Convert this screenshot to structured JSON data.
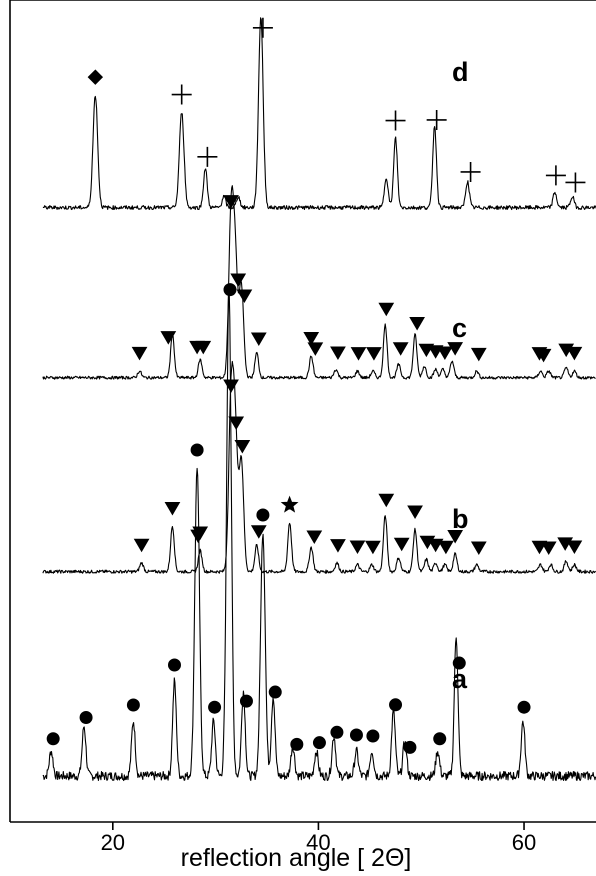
{
  "chart_data": {
    "type": "line",
    "title": "",
    "xlabel": "reflection angle [ 2Θ]",
    "ylabel": "",
    "xlim": [
      10,
      67
    ],
    "x_ticks": [
      20,
      40,
      60
    ],
    "y_ticks": false,
    "grid": false,
    "marker_legend": {
      "diamond": "reflection marker (pattern d)",
      "plus": "reflection marker (pattern d)",
      "triangle": "reflection marker (patterns b, c)",
      "star": "reflection marker (pattern b)",
      "circle": "reflection marker (pattern a)"
    },
    "series": [
      {
        "name": "a",
        "label": "a",
        "offset": 0.0,
        "peaks": [
          [
            14.0,
            0.05
          ],
          [
            17.2,
            0.1
          ],
          [
            22.0,
            0.11
          ],
          [
            26.0,
            0.19
          ],
          [
            28.2,
            0.62
          ],
          [
            29.8,
            0.11
          ],
          [
            31.3,
            0.98
          ],
          [
            32.7,
            0.17
          ],
          [
            34.6,
            0.49
          ],
          [
            35.6,
            0.16
          ],
          [
            37.5,
            0.06
          ],
          [
            39.8,
            0.05
          ],
          [
            41.5,
            0.08
          ],
          [
            43.7,
            0.05
          ],
          [
            45.2,
            0.05
          ],
          [
            47.3,
            0.13
          ],
          [
            48.4,
            0.07
          ],
          [
            51.6,
            0.05
          ],
          [
            53.4,
            0.28
          ],
          [
            59.9,
            0.11
          ]
        ],
        "markers": {
          "symbol": "circle",
          "x": [
            14.2,
            17.4,
            22.0,
            26.0,
            28.2,
            29.9,
            31.4,
            33.0,
            34.6,
            35.8,
            37.9,
            40.1,
            41.8,
            43.7,
            45.3,
            47.5,
            48.9,
            51.8,
            53.7,
            60.0
          ]
        }
      },
      {
        "name": "b",
        "label": "b",
        "offset": 1.0,
        "peaks": [
          [
            22.8,
            0.05
          ],
          [
            25.8,
            0.26
          ],
          [
            28.5,
            0.12
          ],
          [
            31.5,
            0.96
          ],
          [
            31.9,
            0.78
          ],
          [
            32.5,
            0.64
          ],
          [
            34.0,
            0.15
          ],
          [
            37.2,
            0.28
          ],
          [
            39.3,
            0.14
          ],
          [
            41.8,
            0.05
          ],
          [
            43.8,
            0.04
          ],
          [
            45.2,
            0.04
          ],
          [
            46.5,
            0.32
          ],
          [
            47.8,
            0.08
          ],
          [
            49.4,
            0.24
          ],
          [
            50.5,
            0.07
          ],
          [
            51.4,
            0.05
          ],
          [
            52.3,
            0.04
          ],
          [
            53.3,
            0.1
          ],
          [
            55.4,
            0.04
          ],
          [
            61.6,
            0.04
          ],
          [
            62.6,
            0.04
          ],
          [
            64.1,
            0.06
          ],
          [
            64.9,
            0.04
          ]
        ],
        "markers": [
          {
            "symbol": "triangle",
            "x": [
              22.8,
              25.8,
              28.3,
              28.5,
              31.5,
              32.0,
              32.6,
              34.2,
              39.6,
              41.9,
              43.8,
              45.3,
              46.6,
              48.1,
              49.4,
              50.6,
              51.4,
              52.4,
              53.3,
              55.6,
              61.5,
              62.4,
              64.0,
              64.9
            ]
          },
          {
            "symbol": "star",
            "x": [
              37.2
            ]
          }
        ]
      },
      {
        "name": "c",
        "label": "c",
        "offset": 2.0,
        "peaks": [
          [
            22.6,
            0.04
          ],
          [
            25.8,
            0.26
          ],
          [
            28.5,
            0.11
          ],
          [
            31.5,
            0.96
          ],
          [
            31.9,
            0.7
          ],
          [
            32.5,
            0.56
          ],
          [
            34.0,
            0.15
          ],
          [
            39.3,
            0.13
          ],
          [
            41.7,
            0.05
          ],
          [
            43.8,
            0.04
          ],
          [
            45.3,
            0.04
          ],
          [
            46.5,
            0.32
          ],
          [
            47.8,
            0.08
          ],
          [
            49.4,
            0.26
          ],
          [
            50.3,
            0.07
          ],
          [
            51.4,
            0.05
          ],
          [
            52.1,
            0.05
          ],
          [
            53.0,
            0.1
          ],
          [
            55.4,
            0.04
          ],
          [
            61.6,
            0.04
          ],
          [
            62.4,
            0.04
          ],
          [
            64.1,
            0.06
          ],
          [
            64.9,
            0.04
          ]
        ],
        "markers": {
          "symbol": "triangle",
          "x": [
            22.6,
            25.4,
            28.2,
            28.8,
            31.5,
            32.2,
            32.8,
            34.2,
            39.3,
            39.7,
            41.9,
            43.9,
            45.4,
            46.6,
            48.0,
            49.6,
            50.5,
            51.4,
            52.3,
            53.3,
            55.6,
            61.5,
            61.9,
            64.1,
            64.9
          ]
        }
      },
      {
        "name": "d",
        "label": "d",
        "offset": 3.0,
        "peaks": [
          [
            18.3,
            0.52
          ],
          [
            26.7,
            0.44
          ],
          [
            29.0,
            0.18
          ],
          [
            30.8,
            0.05
          ],
          [
            32.2,
            0.05
          ],
          [
            34.4,
            0.88
          ],
          [
            46.6,
            0.14
          ],
          [
            47.5,
            0.32
          ],
          [
            51.3,
            0.38
          ],
          [
            54.5,
            0.12
          ],
          [
            63.0,
            0.07
          ],
          [
            64.7,
            0.05
          ]
        ],
        "markers": [
          {
            "symbol": "diamond",
            "x": [
              18.3
            ]
          },
          {
            "symbol": "plus",
            "x": [
              26.7,
              29.2,
              34.6,
              47.5,
              51.5,
              54.8,
              63.1,
              65.0
            ]
          }
        ]
      }
    ]
  }
}
